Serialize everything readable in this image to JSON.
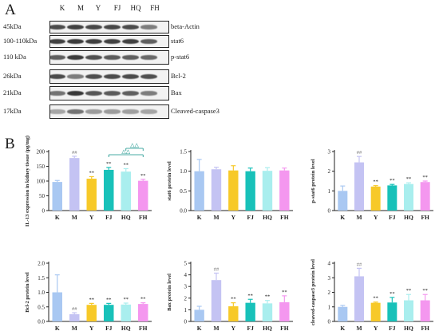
{
  "panel_a": {
    "letter": "A",
    "lanes": [
      "K",
      "M",
      "Y",
      "FJ",
      "HQ",
      "FH"
    ],
    "blots": [
      {
        "kda": "45kDa",
        "protein": "beta-Actin",
        "intensity": [
          0.8,
          0.85,
          0.82,
          0.82,
          0.8,
          0.55
        ]
      },
      {
        "kda": "100-110kDa",
        "protein": "stat6",
        "intensity": [
          0.85,
          0.88,
          0.86,
          0.85,
          0.85,
          0.7
        ]
      },
      {
        "kda": "110 kDa",
        "protein": "p-stat6",
        "intensity": [
          0.7,
          0.88,
          0.78,
          0.72,
          0.7,
          0.65
        ]
      },
      {
        "kda": "26kDa",
        "protein": "Bcl-2",
        "intensity": [
          0.8,
          0.55,
          0.78,
          0.8,
          0.8,
          0.78
        ]
      },
      {
        "kda": "21kDa",
        "protein": "Bax",
        "intensity": [
          0.6,
          0.9,
          0.75,
          0.72,
          0.7,
          0.55
        ]
      },
      {
        "kda": "17kDa",
        "protein": "Cleaved-caspase3",
        "intensity": [
          0.35,
          0.6,
          0.4,
          0.4,
          0.38,
          0.35
        ]
      }
    ]
  },
  "panel_b": {
    "letter": "B"
  },
  "colors": [
    "#a9c8f2",
    "#c4c3f3",
    "#f7c928",
    "#18c1b9",
    "#a9eeee",
    "#f497ef"
  ],
  "chart_data": [
    {
      "type": "bar",
      "categories": [
        "K",
        "M",
        "Y",
        "FJ",
        "HQ",
        "FH"
      ],
      "values": [
        97,
        178,
        108,
        138,
        132,
        101
      ],
      "errors": [
        5,
        6,
        7,
        8,
        10,
        5
      ],
      "ylabel": "IL-13 expression in kidney tissue (pg/mg)",
      "ylim": [
        0,
        200
      ],
      "yticks": [
        "0",
        "50",
        "100",
        "150",
        "200"
      ],
      "annotations": [
        "",
        "##",
        "**",
        "**",
        "**",
        "**"
      ],
      "brackets": [
        {
          "from": "FJ",
          "to": "FH",
          "label": "△△"
        },
        {
          "from": "HQ",
          "to": "FH",
          "label": "△△"
        }
      ]
    },
    {
      "type": "bar",
      "categories": [
        "K",
        "M",
        "Y",
        "FJ",
        "HQ",
        "FH"
      ],
      "values": [
        1.0,
        1.05,
        1.02,
        1.0,
        1.01,
        1.02
      ],
      "errors": [
        0.3,
        0.05,
        0.12,
        0.08,
        0.08,
        0.06
      ],
      "ylabel": "stat6 protein level",
      "ylim": [
        0,
        1.5
      ],
      "yticks": [
        "0.0",
        "0.5",
        "1.0",
        "1.5"
      ],
      "annotations": [
        "",
        "",
        "",
        "",
        "",
        ""
      ]
    },
    {
      "type": "bar",
      "categories": [
        "K",
        "M",
        "Y",
        "FJ",
        "HQ",
        "FH"
      ],
      "values": [
        1.0,
        2.45,
        1.22,
        1.28,
        1.35,
        1.45
      ],
      "errors": [
        0.25,
        0.3,
        0.05,
        0.05,
        0.06,
        0.05
      ],
      "ylabel": "p-stat6 protein level",
      "ylim": [
        0,
        3
      ],
      "yticks": [
        "0",
        "1",
        "2",
        "3"
      ],
      "annotations": [
        "",
        "##",
        "**",
        "**",
        "**",
        "**"
      ]
    },
    {
      "type": "bar",
      "categories": [
        "K",
        "M",
        "Y",
        "FJ",
        "HQ",
        "FH"
      ],
      "values": [
        1.0,
        0.25,
        0.57,
        0.57,
        0.58,
        0.6
      ],
      "errors": [
        0.6,
        0.05,
        0.05,
        0.05,
        0.05,
        0.04
      ],
      "ylabel": "Bcl-2 protein level",
      "ylim": [
        0,
        2.0
      ],
      "yticks": [
        "0.0",
        "0.5",
        "1.0",
        "1.5",
        "2.0"
      ],
      "annotations": [
        "",
        "##",
        "**",
        "**",
        "**",
        "**"
      ]
    },
    {
      "type": "bar",
      "categories": [
        "K",
        "M",
        "Y",
        "FJ",
        "HQ",
        "FH"
      ],
      "values": [
        1.0,
        3.55,
        1.3,
        1.6,
        1.55,
        1.65
      ],
      "errors": [
        0.3,
        0.6,
        0.3,
        0.3,
        0.25,
        0.55
      ],
      "ylabel": "Bax protein level",
      "ylim": [
        0,
        5
      ],
      "yticks": [
        "0",
        "1",
        "2",
        "3",
        "4",
        "5"
      ],
      "annotations": [
        "",
        "##",
        "**",
        "**",
        "**",
        "**"
      ]
    },
    {
      "type": "bar",
      "categories": [
        "K",
        "M",
        "Y",
        "FJ",
        "HQ",
        "FH"
      ],
      "values": [
        1.0,
        3.1,
        1.28,
        1.3,
        1.45,
        1.45
      ],
      "errors": [
        0.1,
        0.55,
        0.05,
        0.35,
        0.4,
        0.4
      ],
      "ylabel": "cleaved-caspase3 protein level",
      "ylim": [
        0,
        4
      ],
      "yticks": [
        "0",
        "1",
        "2",
        "3",
        "4"
      ],
      "annotations": [
        "",
        "##",
        "**",
        "**",
        "**",
        "**"
      ]
    }
  ]
}
